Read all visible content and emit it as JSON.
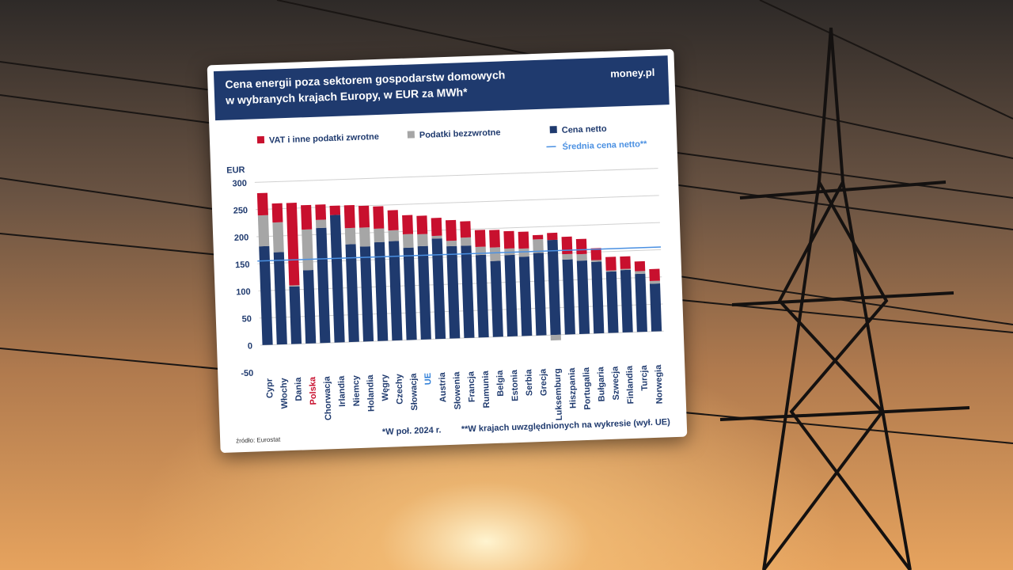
{
  "chart_data": {
    "type": "bar",
    "stacked": true,
    "title": [
      "Cena energii poza sektorem gospodarstw domowych",
      "w wybranych krajach Europy, w EUR za MWh*"
    ],
    "brand": "money.pl",
    "y_label": "EUR",
    "source": "źródło: Eurostat",
    "footnotes": [
      "*W poł. 2024 r.",
      "**W krajach uwzględnionych na wykresie (wył. UE)"
    ],
    "categories": [
      "Cypr",
      "Włochy",
      "Dania",
      "Polska",
      "Chorwacja",
      "Irlandia",
      "Niemcy",
      "Holandia",
      "Węgry",
      "Czechy",
      "Słowacja",
      "UE",
      "Austria",
      "Słowenia",
      "Francja",
      "Rumunia",
      "Belgia",
      "Estonia",
      "Serbia",
      "Grecja",
      "Luksemburg",
      "Hiszpania",
      "Portugalia",
      "Bułgaria",
      "Szwecja",
      "Finlandia",
      "Turcja",
      "Norwegia"
    ],
    "category_label_colors": [
      "#1f3a6e",
      "#1f3a6e",
      "#1f3a6e",
      "#c8102e",
      "#1f3a6e",
      "#1f3a6e",
      "#1f3a6e",
      "#1f3a6e",
      "#1f3a6e",
      "#1f3a6e",
      "#1f3a6e",
      "#2f7fd8",
      "#1f3a6e",
      "#1f3a6e",
      "#1f3a6e",
      "#1f3a6e",
      "#1f3a6e",
      "#1f3a6e",
      "#1f3a6e",
      "#1f3a6e",
      "#1f3a6e",
      "#1f3a6e",
      "#1f3a6e",
      "#1f3a6e",
      "#1f3a6e",
      "#1f3a6e",
      "#1f3a6e",
      "#1f3a6e"
    ],
    "series": [
      {
        "name": "Cena netto",
        "color": "#1f3a6e",
        "values": [
          182,
          170,
          106,
          135,
          212,
          235,
          180,
          175,
          182,
          183,
          170,
          172,
          185,
          170,
          170,
          152,
          140,
          150,
          146,
          152,
          175,
          138,
          135,
          132,
          113,
          115,
          107,
          88
        ]
      },
      {
        "name": "Podatki bezzwrotne",
        "color": "#a6a6a6",
        "values": [
          57,
          55,
          2,
          75,
          15,
          0,
          30,
          35,
          25,
          20,
          25,
          22,
          5,
          10,
          15,
          15,
          25,
          12,
          15,
          25,
          -10,
          10,
          12,
          3,
          2,
          2,
          5,
          5
        ]
      },
      {
        "name": "VAT i inne podatki zwrotne",
        "color": "#c8102e",
        "values": [
          41,
          35,
          152,
          45,
          28,
          17,
          42,
          40,
          41,
          37,
          35,
          34,
          33,
          38,
          30,
          31,
          32,
          32,
          31,
          8,
          13,
          32,
          28,
          22,
          25,
          23,
          18,
          22
        ]
      }
    ],
    "average": {
      "name": "Średnia cena netto**",
      "value": 155,
      "color": "#4a90e2"
    },
    "ylim": [
      -50,
      300
    ],
    "yticks": [
      -50,
      0,
      50,
      100,
      150,
      200,
      250,
      300
    ],
    "grid": true
  }
}
